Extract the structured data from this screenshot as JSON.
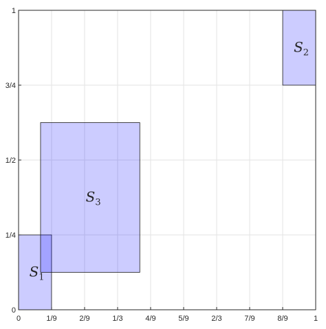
{
  "chart_data": {
    "type": "diagram",
    "xlim": [
      0,
      1
    ],
    "ylim": [
      0,
      1
    ],
    "grid": true,
    "xticks": [
      {
        "value": 0,
        "label": "0"
      },
      {
        "value": 0.1111,
        "label": "1/9"
      },
      {
        "value": 0.2222,
        "label": "2/9"
      },
      {
        "value": 0.3333,
        "label": "1/3"
      },
      {
        "value": 0.4444,
        "label": "4/9"
      },
      {
        "value": 0.5556,
        "label": "5/9"
      },
      {
        "value": 0.6667,
        "label": "2/3"
      },
      {
        "value": 0.7778,
        "label": "7/9"
      },
      {
        "value": 0.8889,
        "label": "8/9"
      },
      {
        "value": 1,
        "label": "1"
      }
    ],
    "yticks": [
      {
        "value": 0,
        "label": "0"
      },
      {
        "value": 0.25,
        "label": "1/4"
      },
      {
        "value": 0.5,
        "label": "1/2"
      },
      {
        "value": 0.75,
        "label": "3/4"
      },
      {
        "value": 1,
        "label": "1"
      }
    ],
    "regions": [
      {
        "base": "S",
        "sub": "1",
        "x0": 0.0,
        "x1": 0.111,
        "y0": 0.0,
        "y1": 0.25,
        "label_x": 0.05,
        "label_y": 0.125
      },
      {
        "base": "S",
        "sub": "3",
        "x0": 0.074,
        "x1": 0.408,
        "y0": 0.125,
        "y1": 0.625,
        "label_x": 0.24,
        "label_y": 0.375
      },
      {
        "base": "S",
        "sub": "2",
        "x0": 0.889,
        "x1": 1.0,
        "y0": 0.75,
        "y1": 1.0,
        "label_x": 0.94,
        "label_y": 0.875
      }
    ],
    "fill_color": "#0000ff",
    "edge_color": "#1a1a1a"
  }
}
